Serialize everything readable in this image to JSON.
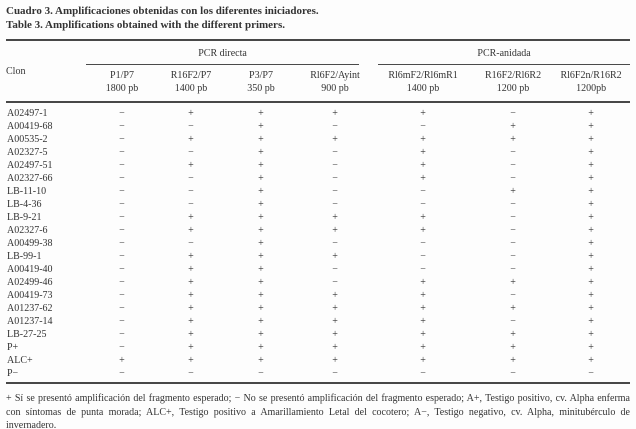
{
  "page": {
    "title_es": "Cuadro 3. Amplificaciones obtenidas con los diferentes iniciadores.",
    "title_en": "Table 3. Amplifications obtained with the different primers."
  },
  "table": {
    "clone_header": "Clon",
    "groups": [
      {
        "label": "PCR directa"
      },
      {
        "label": "PCR-anidada"
      }
    ],
    "columns": [
      {
        "name": "P1/P7",
        "size": "1800 pb"
      },
      {
        "name": "R16F2/P7",
        "size": "1400 pb"
      },
      {
        "name": "P3/P7",
        "size": "350 pb"
      },
      {
        "name": "Rl6F2/Ayint",
        "size": "900 pb"
      },
      {
        "name": "Rl6mF2/Rl6mR1",
        "size": "1400 pb"
      },
      {
        "name": "R16F2/Rl6R2",
        "size": "1200 pb"
      },
      {
        "name": "Rl6F2n/R16R2",
        "size": "1200pb"
      }
    ],
    "rows": [
      {
        "clone": "A02497-1",
        "results": [
          "−",
          "+",
          "+",
          "+",
          "+",
          "−",
          "+"
        ]
      },
      {
        "clone": "A00419-68",
        "results": [
          "−",
          "−",
          "+",
          "−",
          "−",
          "+",
          "+"
        ]
      },
      {
        "clone": "A00535-2",
        "results": [
          "−",
          "+",
          "+",
          "+",
          "+",
          "+",
          "+"
        ]
      },
      {
        "clone": "A02327-5",
        "results": [
          "−",
          "−",
          "+",
          "−",
          "+",
          "−",
          "+"
        ]
      },
      {
        "clone": "A02497-51",
        "results": [
          "−",
          "+",
          "+",
          "−",
          "+",
          "−",
          "+"
        ]
      },
      {
        "clone": "A02327-66",
        "results": [
          "−",
          "−",
          "+",
          "−",
          "+",
          "−",
          "+"
        ]
      },
      {
        "clone": "LB-11-10",
        "results": [
          "−",
          "−",
          "+",
          "−",
          "−",
          "+",
          "+"
        ]
      },
      {
        "clone": "LB-4-36",
        "results": [
          "−",
          "−",
          "+",
          "−",
          "−",
          "−",
          "+"
        ]
      },
      {
        "clone": "LB-9-21",
        "results": [
          "−",
          "+",
          "+",
          "+",
          "+",
          "−",
          "+"
        ]
      },
      {
        "clone": "A02327-6",
        "results": [
          "−",
          "+",
          "+",
          "+",
          "+",
          "−",
          "+"
        ]
      },
      {
        "clone": "A00499-38",
        "results": [
          "−",
          "−",
          "+",
          "−",
          "−",
          "−",
          "+"
        ]
      },
      {
        "clone": "LB-99-1",
        "results": [
          "−",
          "+",
          "+",
          "+",
          "−",
          "−",
          "+"
        ]
      },
      {
        "clone": "A00419-40",
        "results": [
          "−",
          "+",
          "+",
          "−",
          "−",
          "−",
          "+"
        ]
      },
      {
        "clone": "A02499-46",
        "results": [
          "−",
          "+",
          "+",
          "−",
          "+",
          "+",
          "+"
        ]
      },
      {
        "clone": "A00419-73",
        "results": [
          "−",
          "+",
          "+",
          "+",
          "+",
          "−",
          "+"
        ]
      },
      {
        "clone": "A01237-62",
        "results": [
          "−",
          "+",
          "+",
          "+",
          "+",
          "+",
          "+"
        ]
      },
      {
        "clone": "A01237-14",
        "results": [
          "−",
          "+",
          "+",
          "+",
          "+",
          "−",
          "+"
        ]
      },
      {
        "clone": "LB-27-25",
        "results": [
          "−",
          "+",
          "+",
          "+",
          "+",
          "+",
          "+"
        ]
      },
      {
        "clone": "P+",
        "results": [
          "−",
          "+",
          "+",
          "+",
          "+",
          "+",
          "+"
        ]
      },
      {
        "clone": "ALC+",
        "results": [
          "+",
          "+",
          "+",
          "+",
          "+",
          "+",
          "+"
        ]
      },
      {
        "clone": "P−",
        "results": [
          "−",
          "−",
          "−",
          "−",
          "−",
          "−",
          "−"
        ]
      }
    ]
  },
  "footnote": "+ Sí se presentó amplificación del fragmento esperado; − No se presentó amplificación del fragmento esperado; A+, Testigo positivo, cv. Alpha enferma con síntomas de punta morada; ALC+, Testigo positivo a Amarillamiento Letal del cocotero; A−, Testigo negativo, cv. Alpha, minitubérculo de invernadero."
}
